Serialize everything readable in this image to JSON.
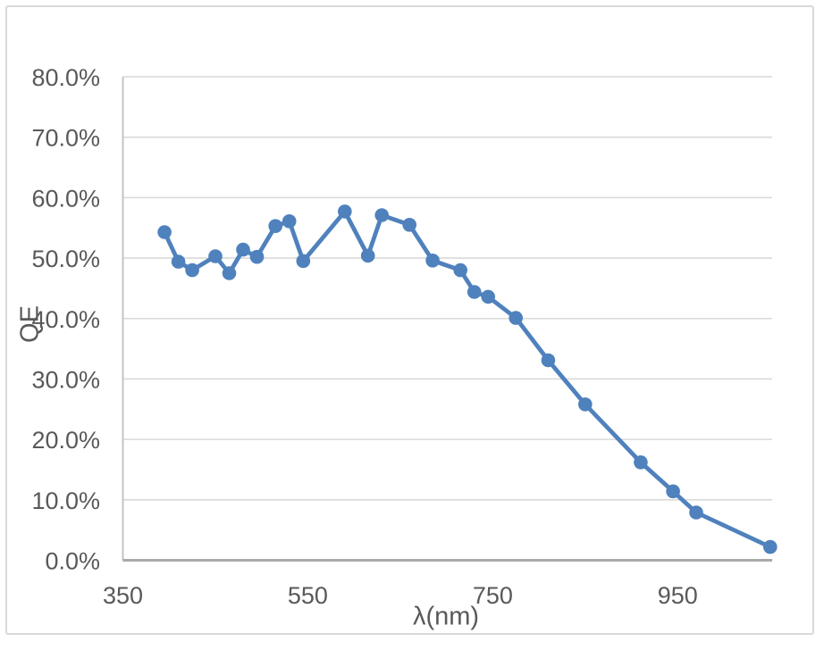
{
  "chart_data": {
    "type": "line",
    "title": "",
    "xlabel": "λ(nm)",
    "ylabel": "QE",
    "x": [
      395,
      410,
      425,
      450,
      465,
      480,
      495,
      515,
      530,
      545,
      590,
      615,
      630,
      660,
      685,
      715,
      730,
      745,
      775,
      810,
      850,
      910,
      945,
      970,
      1050
    ],
    "y_qe_percent": [
      54.3,
      49.4,
      48.0,
      50.3,
      47.5,
      51.4,
      50.2,
      55.3,
      56.1,
      49.5,
      57.7,
      50.4,
      57.1,
      55.5,
      49.6,
      48.0,
      44.4,
      43.6,
      40.1,
      33.1,
      25.8,
      16.2,
      11.4,
      7.9,
      2.2
    ],
    "x_ticks": [
      "350",
      "550",
      "750",
      "950"
    ],
    "x_tick_values": [
      350,
      550,
      750,
      950
    ],
    "y_ticks": [
      "0.0%",
      "10.0%",
      "20.0%",
      "30.0%",
      "40.0%",
      "50.0%",
      "60.0%",
      "70.0%",
      "80.0%"
    ],
    "y_tick_values": [
      0,
      10,
      20,
      30,
      40,
      50,
      60,
      70,
      80
    ],
    "ylim_percent": [
      0,
      80
    ],
    "grid": "horizontal",
    "legend": "none",
    "marker": "circle",
    "colors": {
      "series": "#4F81BD",
      "gridline": "#D9D9D9",
      "y_axis_line": "#C4C4C4",
      "x_axis_line": "#A9A9A9",
      "tick_text": "#595959",
      "frame_border": "#D9D9D9",
      "background": "#FFFFFF"
    }
  }
}
